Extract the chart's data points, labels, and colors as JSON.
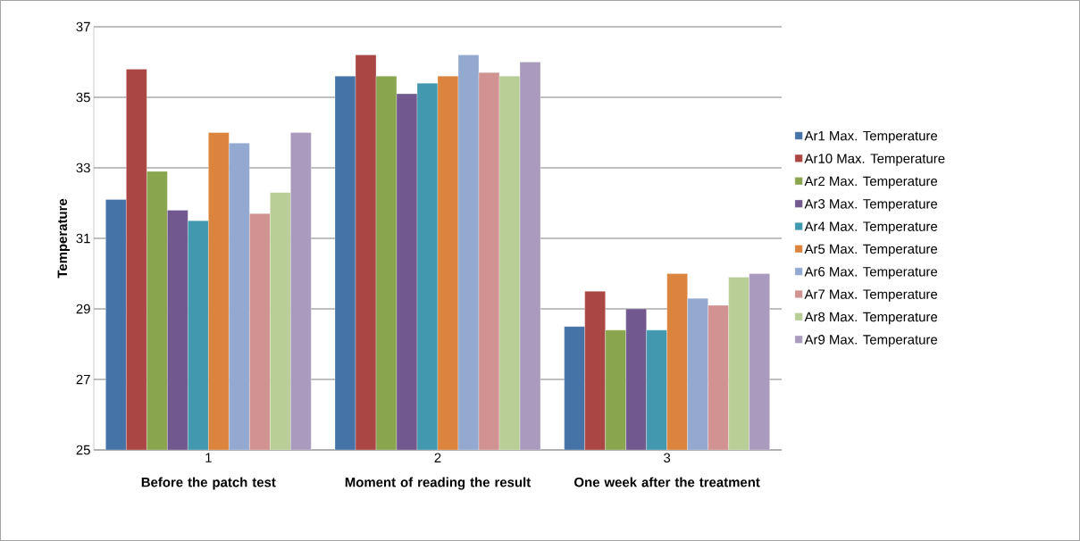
{
  "chart_data": {
    "type": "bar",
    "ylabel": "Temperature",
    "categories": [
      "1",
      "2",
      "3"
    ],
    "annotations": [
      "Before the patch test",
      "Moment of reading the result",
      "One week after the treatment"
    ],
    "series": [
      {
        "name": "Ar1 Max. Temperature",
        "color": "#4572a7",
        "values": [
          32.1,
          35.6,
          28.5
        ]
      },
      {
        "name": "Ar10 Max. Temperature",
        "color": "#aa4643",
        "values": [
          35.8,
          36.2,
          29.5
        ]
      },
      {
        "name": "Ar2 Max. Temperature",
        "color": "#89a54e",
        "values": [
          32.9,
          35.6,
          28.4
        ]
      },
      {
        "name": "Ar3 Max. Temperature",
        "color": "#71588f",
        "values": [
          31.8,
          35.1,
          29.0
        ]
      },
      {
        "name": "Ar4 Max. Temperature",
        "color": "#4198af",
        "values": [
          31.5,
          35.4,
          28.4
        ]
      },
      {
        "name": "Ar5 Max. Temperature",
        "color": "#db843d",
        "values": [
          34.0,
          35.6,
          30.0
        ]
      },
      {
        "name": "Ar6 Max. Temperature",
        "color": "#93a9cf",
        "values": [
          33.7,
          36.2,
          29.3
        ]
      },
      {
        "name": "Ar7 Max. Temperature",
        "color": "#d19392",
        "values": [
          31.7,
          35.7,
          29.1
        ]
      },
      {
        "name": "Ar8 Max. Temperature",
        "color": "#b9cd96",
        "values": [
          32.3,
          35.6,
          29.9
        ]
      },
      {
        "name": "Ar9 Max. Temperature",
        "color": "#a99bbd",
        "values": [
          34.0,
          36.0,
          30.0
        ]
      }
    ],
    "ylim": [
      25,
      37
    ],
    "yticks": [
      25,
      27,
      29,
      31,
      33,
      35,
      37
    ],
    "grid": "y",
    "legend": "right"
  }
}
